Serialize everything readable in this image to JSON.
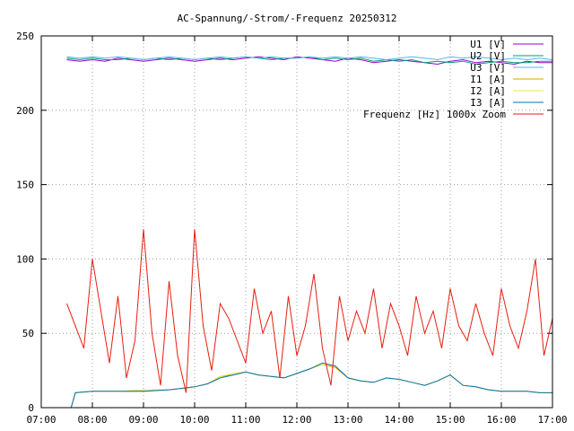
{
  "chart_data": {
    "type": "line",
    "title": "AC-Spannung/-Strom/-Frequenz 20250312",
    "xlabel": "",
    "ylabel": "",
    "xlim": [
      "07:00",
      "17:00"
    ],
    "ylim": [
      0,
      250
    ],
    "x_ticks": [
      "07:00",
      "08:00",
      "09:00",
      "10:00",
      "11:00",
      "12:00",
      "13:00",
      "14:00",
      "15:00",
      "16:00",
      "17:00"
    ],
    "y_ticks": [
      0,
      50,
      100,
      150,
      200,
      250
    ],
    "grid": true,
    "legend_position": "top-right",
    "series": [
      {
        "name": "U1 [V]",
        "color": "#9400d3",
        "x": [
          "07:30",
          "07:45",
          "08:00",
          "08:15",
          "08:30",
          "08:45",
          "09:00",
          "09:15",
          "09:30",
          "09:45",
          "10:00",
          "10:15",
          "10:30",
          "10:45",
          "11:00",
          "11:15",
          "11:30",
          "11:45",
          "12:00",
          "12:15",
          "12:30",
          "12:45",
          "13:00",
          "13:15",
          "13:30",
          "13:45",
          "14:00",
          "14:15",
          "14:30",
          "14:45",
          "15:00",
          "15:15",
          "15:30",
          "15:45",
          "16:00",
          "16:15",
          "16:30",
          "16:45",
          "17:00"
        ],
        "y": [
          234,
          233,
          234,
          233,
          235,
          234,
          233,
          234,
          235,
          234,
          233,
          234,
          235,
          234,
          235,
          236,
          235,
          234,
          236,
          235,
          234,
          233,
          235,
          234,
          232,
          233,
          234,
          233,
          232,
          231,
          233,
          234,
          232,
          233,
          232,
          231,
          233,
          232,
          232
        ]
      },
      {
        "name": "U2 [V]",
        "color": "#009e73",
        "x": [
          "07:30",
          "07:45",
          "08:00",
          "08:15",
          "08:30",
          "08:45",
          "09:00",
          "09:15",
          "09:30",
          "09:45",
          "10:00",
          "10:15",
          "10:30",
          "10:45",
          "11:00",
          "11:15",
          "11:30",
          "11:45",
          "12:00",
          "12:15",
          "12:30",
          "12:45",
          "13:00",
          "13:15",
          "13:30",
          "13:45",
          "14:00",
          "14:15",
          "14:30",
          "14:45",
          "15:00",
          "15:15",
          "15:30",
          "15:45",
          "16:00",
          "16:15",
          "16:30",
          "16:45",
          "17:00"
        ],
        "y": [
          235,
          234,
          235,
          234,
          234,
          235,
          234,
          235,
          234,
          235,
          234,
          235,
          234,
          235,
          236,
          235,
          234,
          235,
          235,
          236,
          234,
          235,
          234,
          235,
          233,
          234,
          233,
          234,
          232,
          233,
          232,
          233,
          231,
          232,
          233,
          232,
          232,
          233,
          233
        ]
      },
      {
        "name": "U3 [V]",
        "color": "#56b4e9",
        "x": [
          "07:30",
          "07:45",
          "08:00",
          "08:15",
          "08:30",
          "08:45",
          "09:00",
          "09:15",
          "09:30",
          "09:45",
          "10:00",
          "10:15",
          "10:30",
          "10:45",
          "11:00",
          "11:15",
          "11:30",
          "11:45",
          "12:00",
          "12:15",
          "12:30",
          "12:45",
          "13:00",
          "13:15",
          "13:30",
          "13:45",
          "14:00",
          "14:15",
          "14:30",
          "14:45",
          "15:00",
          "15:15",
          "15:30",
          "15:45",
          "16:00",
          "16:15",
          "16:30",
          "16:45",
          "17:00"
        ],
        "y": [
          236,
          235,
          236,
          235,
          236,
          235,
          234,
          235,
          236,
          235,
          234,
          235,
          236,
          235,
          236,
          235,
          236,
          235,
          235,
          236,
          235,
          236,
          235,
          236,
          235,
          234,
          235,
          236,
          235,
          234,
          236,
          235,
          236,
          235,
          234,
          235,
          234,
          235,
          234
        ]
      },
      {
        "name": "I1 [A]",
        "color": "#e69f00",
        "x": [
          "07:35",
          "07:40",
          "08:00",
          "08:30",
          "09:00",
          "09:30",
          "09:45",
          "10:00",
          "10:15",
          "10:30",
          "10:45",
          "11:00",
          "11:15",
          "11:30",
          "11:45",
          "12:00",
          "12:15",
          "12:30",
          "12:45",
          "13:00",
          "13:15",
          "13:30",
          "13:45",
          "14:00",
          "14:15",
          "14:30",
          "14:45",
          "15:00",
          "15:15",
          "15:30",
          "15:45",
          "16:00",
          "16:15",
          "16:30",
          "16:45",
          "17:00"
        ],
        "y": [
          0,
          10,
          11,
          11,
          11,
          12,
          13,
          14,
          16,
          21,
          22,
          24,
          22,
          21,
          20,
          23,
          26,
          29,
          27,
          20,
          18,
          17,
          20,
          19,
          17,
          15,
          18,
          22,
          15,
          14,
          12,
          11,
          11,
          11,
          10,
          10
        ]
      },
      {
        "name": "I2 [A]",
        "color": "#f0e442",
        "x": [
          "07:35",
          "07:40",
          "08:00",
          "08:30",
          "09:00",
          "09:30",
          "09:45",
          "10:00",
          "10:15",
          "10:30",
          "10:45",
          "11:00",
          "11:15",
          "11:30",
          "11:45",
          "12:00",
          "12:15",
          "12:30",
          "12:45",
          "13:00",
          "13:15",
          "13:30",
          "13:45",
          "14:00",
          "14:15",
          "14:30",
          "14:45",
          "15:00",
          "15:15",
          "15:30",
          "15:45",
          "16:00",
          "16:15",
          "16:30",
          "16:45",
          "17:00"
        ],
        "y": [
          0,
          10,
          11,
          11,
          12,
          12,
          13,
          14,
          16,
          21,
          23,
          24,
          22,
          21,
          20,
          23,
          26,
          29,
          28,
          20,
          18,
          17,
          20,
          19,
          17,
          15,
          18,
          22,
          15,
          14,
          12,
          11,
          11,
          11,
          10,
          10
        ]
      },
      {
        "name": "I3 [A]",
        "color": "#0072b2",
        "x": [
          "07:35",
          "07:40",
          "08:00",
          "08:30",
          "09:00",
          "09:30",
          "09:45",
          "10:00",
          "10:15",
          "10:30",
          "10:45",
          "11:00",
          "11:15",
          "11:30",
          "11:45",
          "12:00",
          "12:15",
          "12:30",
          "12:45",
          "13:00",
          "13:15",
          "13:30",
          "13:45",
          "14:00",
          "14:15",
          "14:30",
          "14:45",
          "15:00",
          "15:15",
          "15:30",
          "15:45",
          "16:00",
          "16:15",
          "16:30",
          "16:45",
          "17:00"
        ],
        "y": [
          0,
          10,
          11,
          11,
          11,
          12,
          13,
          14,
          16,
          20,
          22,
          24,
          22,
          21,
          20,
          23,
          26,
          30,
          28,
          20,
          18,
          17,
          20,
          19,
          17,
          15,
          18,
          22,
          15,
          14,
          12,
          11,
          11,
          11,
          10,
          10
        ]
      },
      {
        "name": "Frequenz [Hz] 1000x Zoom",
        "color": "#e51e10",
        "x": [
          "07:30",
          "07:40",
          "07:50",
          "08:00",
          "08:10",
          "08:20",
          "08:30",
          "08:40",
          "08:50",
          "09:00",
          "09:10",
          "09:20",
          "09:30",
          "09:40",
          "09:50",
          "10:00",
          "10:10",
          "10:20",
          "10:30",
          "10:40",
          "10:50",
          "11:00",
          "11:10",
          "11:20",
          "11:30",
          "11:40",
          "11:50",
          "12:00",
          "12:10",
          "12:20",
          "12:30",
          "12:40",
          "12:50",
          "13:00",
          "13:10",
          "13:20",
          "13:30",
          "13:40",
          "13:50",
          "14:00",
          "14:10",
          "14:20",
          "14:30",
          "14:40",
          "14:50",
          "15:00",
          "15:10",
          "15:20",
          "15:30",
          "15:40",
          "15:50",
          "16:00",
          "16:10",
          "16:20",
          "16:30",
          "16:40",
          "16:50",
          "17:00"
        ],
        "y": [
          70,
          55,
          40,
          100,
          65,
          30,
          75,
          20,
          45,
          120,
          50,
          15,
          85,
          35,
          10,
          120,
          55,
          25,
          70,
          60,
          45,
          30,
          80,
          50,
          65,
          20,
          75,
          35,
          55,
          90,
          40,
          15,
          75,
          45,
          65,
          50,
          80,
          40,
          70,
          55,
          35,
          75,
          50,
          65,
          40,
          80,
          55,
          45,
          70,
          50,
          35,
          80,
          55,
          40,
          65,
          100,
          35,
          60
        ]
      }
    ]
  }
}
